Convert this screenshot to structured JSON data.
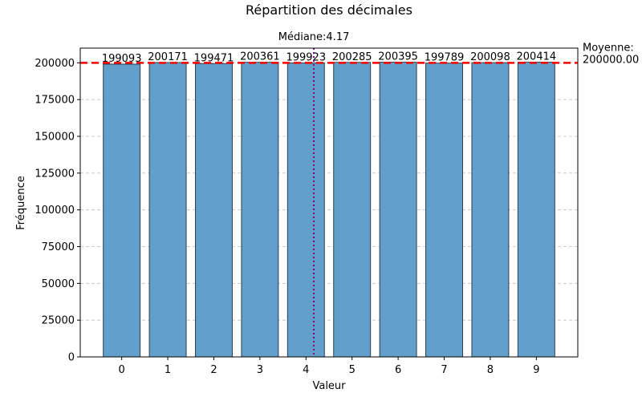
{
  "chart_data": {
    "type": "bar",
    "title": "Répartition des décimales",
    "xlabel": "Valeur",
    "ylabel": "Fréquence",
    "categories": [
      "0",
      "1",
      "2",
      "3",
      "4",
      "5",
      "6",
      "7",
      "8",
      "9"
    ],
    "values": [
      199093,
      200171,
      199471,
      200361,
      199923,
      200285,
      200395,
      199789,
      200098,
      200414
    ],
    "value_labels": [
      "199093",
      "200171",
      "199471",
      "200361",
      "199923",
      "200285",
      "200395",
      "199789",
      "200098",
      "200414"
    ],
    "ylim": [
      0,
      210000
    ],
    "yticks": [
      0,
      25000,
      50000,
      75000,
      100000,
      125000,
      150000,
      175000,
      200000
    ],
    "ytick_labels": [
      "0",
      "25000",
      "50000",
      "75000",
      "100000",
      "125000",
      "150000",
      "175000",
      "200000"
    ],
    "grid": "y-dashed",
    "colors": {
      "bar_fill": "#62a0cb",
      "bar_edge": "#2c3e50",
      "mean_line": "#ff0000",
      "median_line": "#800080",
      "grid": "#c0c0c0"
    },
    "mean": {
      "value": 200000.0,
      "label_line1": "Moyenne:",
      "label_line2": "200000.00"
    },
    "median": {
      "value": 4.17,
      "label": "Médiane:4.17"
    }
  }
}
